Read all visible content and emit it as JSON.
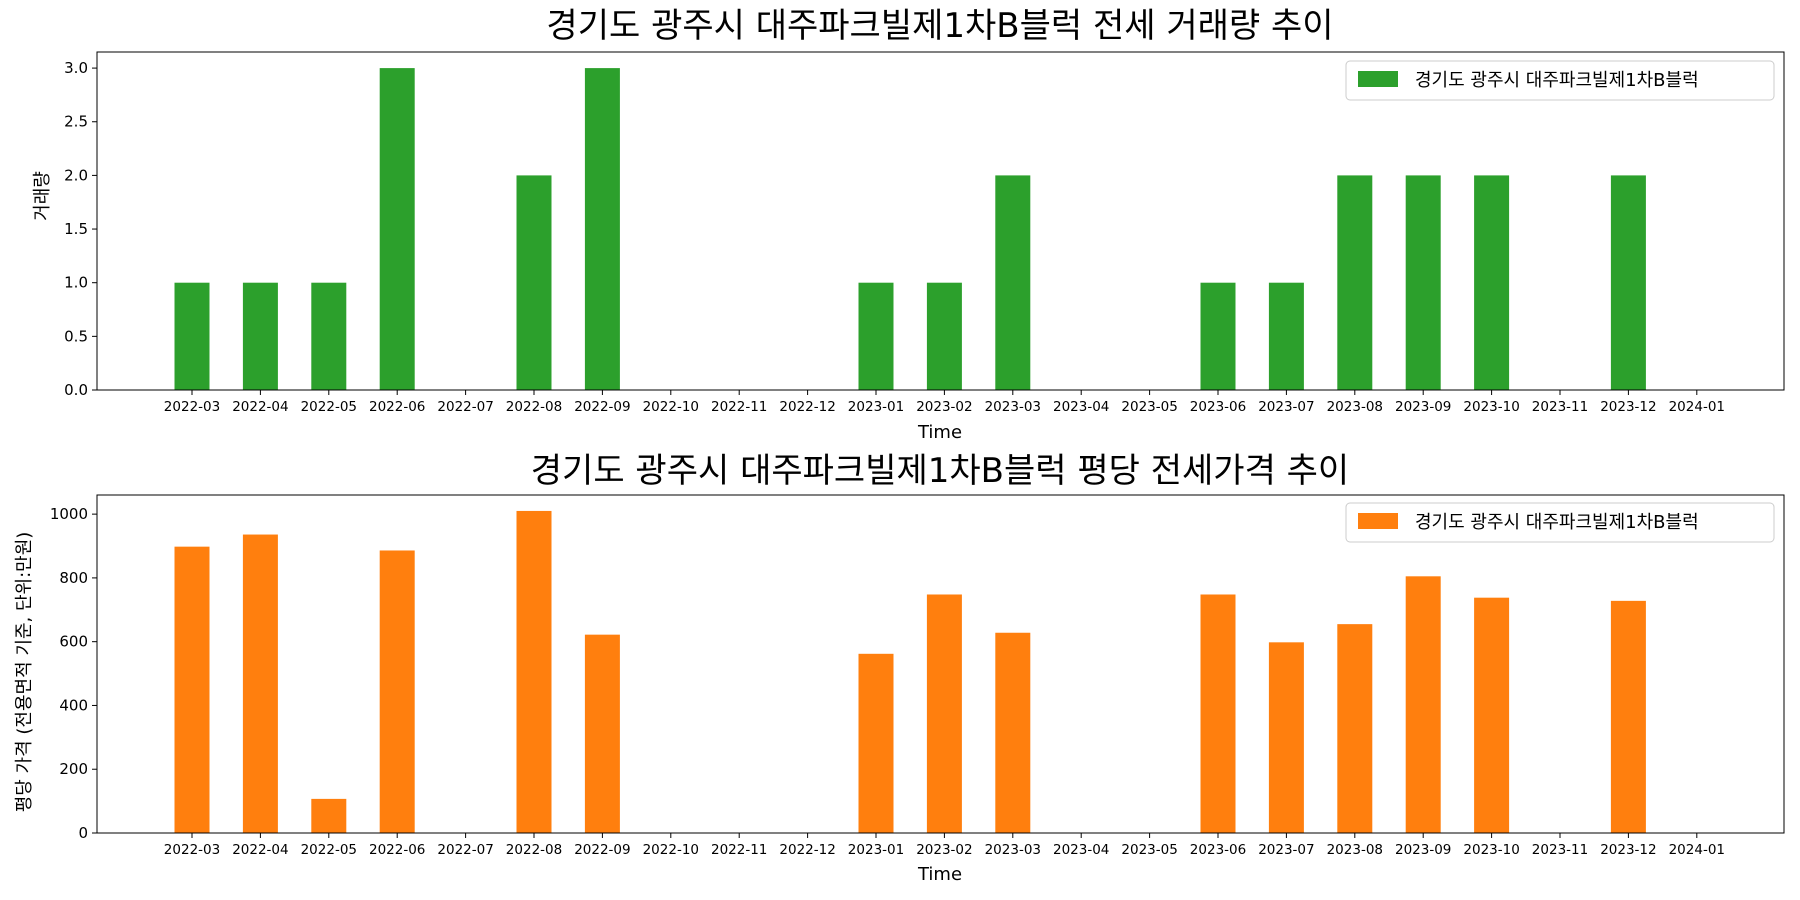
{
  "chart_data": [
    {
      "type": "bar",
      "title": "경기도 광주시 대주파크빌제1차B블럭 전세 거래량 추이",
      "xlabel": "Time",
      "ylabel": "거래량",
      "ylim": [
        0,
        3.15
      ],
      "yticks": [
        "0.0",
        "0.5",
        "1.0",
        "1.5",
        "2.0",
        "2.5",
        "3.0"
      ],
      "grid": false,
      "legend_position": "top-right",
      "categories": [
        "2022-03",
        "2022-04",
        "2022-05",
        "2022-06",
        "2022-07",
        "2022-08",
        "2022-09",
        "2022-10",
        "2022-11",
        "2022-12",
        "2023-01",
        "2023-02",
        "2023-03",
        "2023-04",
        "2023-05",
        "2023-06",
        "2023-07",
        "2023-08",
        "2023-09",
        "2023-10",
        "2023-11",
        "2023-12",
        "2024-01"
      ],
      "series": [
        {
          "name": "경기도 광주시 대주파크빌제1차B블럭",
          "color": "#2ca02c",
          "values": [
            1,
            1,
            1,
            3,
            0,
            2,
            3,
            0,
            0,
            0,
            1,
            1,
            2,
            0,
            0,
            1,
            1,
            2,
            2,
            2,
            0,
            2,
            0
          ]
        }
      ]
    },
    {
      "type": "bar",
      "title": "경기도 광주시 대주파크빌제1차B블럭 평당 전세가격 추이",
      "xlabel": "Time",
      "ylabel": "평당 가격 (전용면적 기준, 단위:만원)",
      "ylim": [
        0,
        1060
      ],
      "yticks": [
        "0",
        "200",
        "400",
        "600",
        "800",
        "1000"
      ],
      "grid": false,
      "legend_position": "top-right",
      "categories": [
        "2022-03",
        "2022-04",
        "2022-05",
        "2022-06",
        "2022-07",
        "2022-08",
        "2022-09",
        "2022-10",
        "2022-11",
        "2022-12",
        "2023-01",
        "2023-02",
        "2023-03",
        "2023-04",
        "2023-05",
        "2023-06",
        "2023-07",
        "2023-08",
        "2023-09",
        "2023-10",
        "2023-11",
        "2023-12",
        "2024-01"
      ],
      "series": [
        {
          "name": "경기도 광주시 대주파크빌제1차B블럭",
          "color": "#ff7f0e",
          "values": [
            898,
            936,
            107,
            886,
            0,
            1010,
            622,
            0,
            0,
            0,
            562,
            748,
            628,
            0,
            0,
            748,
            598,
            655,
            805,
            738,
            0,
            728,
            0
          ]
        }
      ]
    }
  ]
}
